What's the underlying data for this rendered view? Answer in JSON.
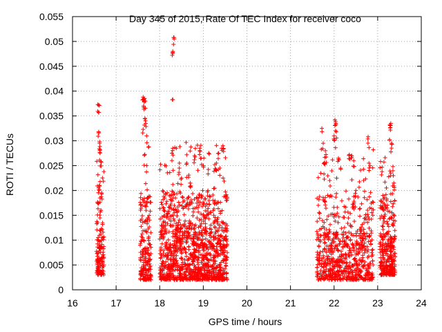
{
  "chart_data": {
    "type": "scatter",
    "title": "Day 345 of 2015, Rate Of TEC Index for receiver coco",
    "xlabel": "GPS time / hours",
    "ylabel": "ROTI / TECUs",
    "xlim": [
      16,
      24
    ],
    "ylim": [
      0,
      0.055
    ],
    "xticks": [
      "16",
      "17",
      "18",
      "19",
      "20",
      "21",
      "22",
      "23",
      "24"
    ],
    "yticks": [
      "0",
      "0.005",
      "0.01",
      "0.015",
      "0.02",
      "0.025",
      "0.03",
      "0.035",
      "0.04",
      "0.045",
      "0.05",
      "0.055"
    ],
    "grid": true,
    "marker": "+",
    "color": "#ff0000",
    "series": [
      {
        "name": "ROTI",
        "clusters": [
          {
            "x_range": [
              16.55,
              16.72
            ],
            "count": 140,
            "y_base": [
              0.003,
              0.011
            ],
            "spikes": [
              [
                16.58,
                0.0373
              ],
              [
                16.6,
                0.0372
              ],
              [
                16.6,
                0.0318
              ],
              [
                16.62,
                0.0298
              ],
              [
                16.63,
                0.0282
              ],
              [
                16.65,
                0.0258
              ],
              [
                16.62,
                0.021
              ],
              [
                16.6,
                0.0205
              ],
              [
                16.67,
                0.0195
              ],
              [
                16.63,
                0.0185
              ],
              [
                16.65,
                0.016
              ]
            ]
          },
          {
            "x_range": [
              17.55,
              17.8
            ],
            "count": 190,
            "y_base": [
              0.002,
              0.012
            ],
            "spikes": [
              [
                17.62,
                0.0388
              ],
              [
                17.65,
                0.0385
              ],
              [
                17.67,
                0.038
              ],
              [
                17.63,
                0.037
              ],
              [
                17.66,
                0.0345
              ],
              [
                17.68,
                0.0335
              ],
              [
                17.62,
                0.0323
              ],
              [
                17.7,
                0.031
              ],
              [
                17.75,
                0.0288
              ],
              [
                17.7,
                0.025
              ],
              [
                17.72,
                0.0185
              ],
              [
                17.7,
                0.0175
              ]
            ]
          },
          {
            "x_range": [
              18.0,
              19.55
            ],
            "count": 1200,
            "y_base": [
              0.002,
              0.013
            ],
            "spikes": [
              [
                18.32,
                0.0508
              ],
              [
                18.33,
                0.0505
              ],
              [
                18.3,
                0.048
              ],
              [
                18.3,
                0.0383
              ],
              [
                18.3,
                0.0285
              ],
              [
                18.28,
                0.0275
              ],
              [
                18.45,
                0.0245
              ],
              [
                18.62,
                0.0255
              ],
              [
                18.8,
                0.027
              ],
              [
                18.92,
                0.0285
              ],
              [
                18.95,
                0.0265
              ],
              [
                19.0,
                0.025
              ],
              [
                19.35,
                0.0275
              ],
              [
                19.42,
                0.0285
              ],
              [
                19.45,
                0.029
              ],
              [
                19.38,
                0.0245
              ],
              [
                18.5,
                0.0225
              ],
              [
                18.7,
                0.0215
              ],
              [
                19.3,
                0.0255
              ]
            ]
          },
          {
            "x_range": [
              21.6,
              22.9
            ],
            "count": 700,
            "y_base": [
              0.002,
              0.012
            ],
            "spikes": [
              [
                21.72,
                0.0325
              ],
              [
                21.75,
                0.0295
              ],
              [
                21.8,
                0.028
              ],
              [
                21.78,
                0.0255
              ],
              [
                22.02,
                0.0342
              ],
              [
                22.04,
                0.0335
              ],
              [
                22.05,
                0.0318
              ],
              [
                22.0,
                0.031
              ],
              [
                22.1,
                0.0265
              ],
              [
                22.15,
                0.0245
              ],
              [
                22.35,
                0.0272
              ],
              [
                22.4,
                0.027
              ],
              [
                22.45,
                0.026
              ],
              [
                22.78,
                0.0308
              ],
              [
                22.8,
                0.0255
              ],
              [
                21.9,
                0.022
              ],
              [
                22.5,
                0.02
              ]
            ]
          },
          {
            "x_range": [
              23.05,
              23.4
            ],
            "count": 320,
            "y_base": [
              0.003,
              0.011
            ],
            "spikes": [
              [
                23.28,
                0.0332
              ],
              [
                23.3,
                0.0335
              ],
              [
                23.27,
                0.0302
              ],
              [
                23.32,
                0.0295
              ],
              [
                23.35,
                0.0248
              ],
              [
                23.3,
                0.0235
              ],
              [
                23.1,
                0.0238
              ],
              [
                23.12,
                0.019
              ],
              [
                23.37,
                0.0215
              ],
              [
                23.2,
                0.0205
              ]
            ]
          }
        ]
      }
    ]
  }
}
